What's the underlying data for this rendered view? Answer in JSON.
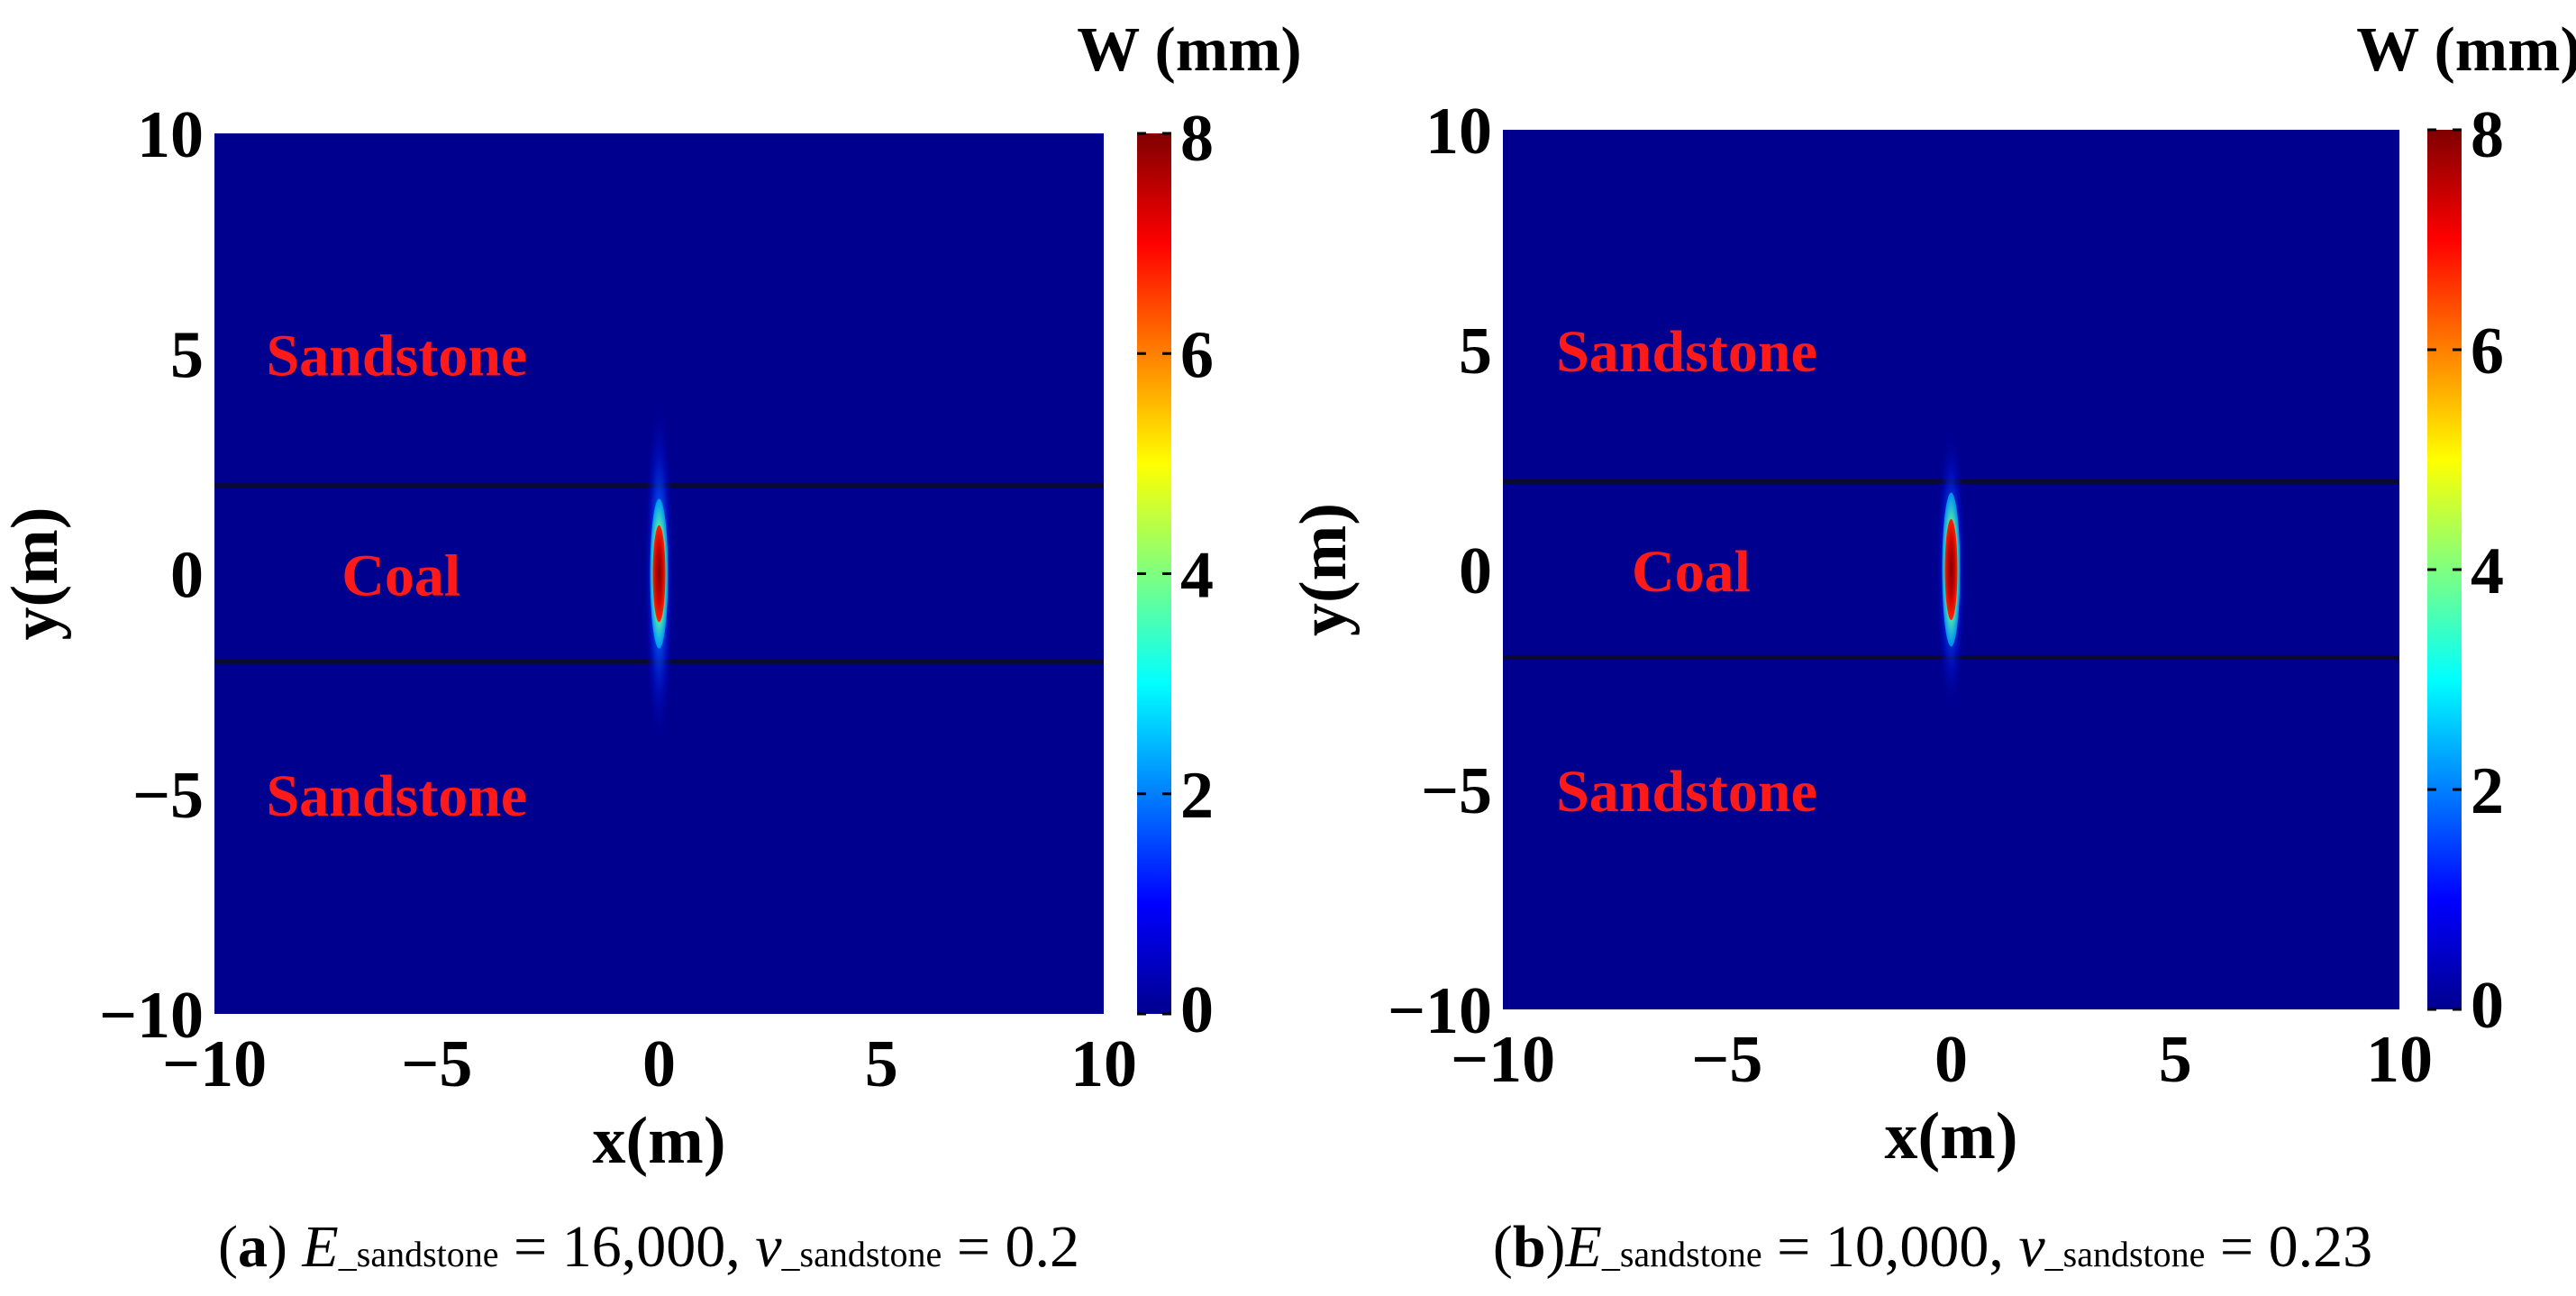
{
  "chart_data": [
    {
      "type": "heatmap",
      "panel_label": "(a)",
      "caption": {
        "label": "a",
        "e_symbol": "E",
        "e_subscript": "_sandstone",
        "e_value": "16,000",
        "v_symbol": "v",
        "v_subscript": "_sandstone",
        "v_value": "0.2"
      },
      "xlabel": "x(m)",
      "ylabel": "y(m)",
      "xlim": [
        -10,
        10
      ],
      "ylim": [
        -10,
        10
      ],
      "xticks": [
        -10,
        -5,
        0,
        5,
        10
      ],
      "yticks": [
        -10,
        -5,
        0,
        5,
        10
      ],
      "xtick_labels": [
        "−10",
        "−5",
        "0",
        "5",
        "10"
      ],
      "ytick_labels": [
        "−10",
        "−5",
        "0",
        "5",
        "10"
      ],
      "colorbar": {
        "title": "W (mm)",
        "range": [
          0,
          8
        ],
        "ticks": [
          0,
          2,
          4,
          6,
          8
        ],
        "tick_labels": [
          "0",
          "2",
          "4",
          "6",
          "8"
        ],
        "colormap": "jet"
      },
      "background_value": 0,
      "layers": [
        {
          "name": "Sandstone",
          "y_range": [
            2,
            10
          ],
          "label_y": 5
        },
        {
          "name": "Coal",
          "y_range": [
            -2,
            2
          ],
          "label_y": 0
        },
        {
          "name": "Sandstone",
          "y_range": [
            -10,
            -2
          ],
          "label_y": -5
        }
      ],
      "interfaces_y": [
        2,
        -2
      ],
      "crack_peak": {
        "x": 0,
        "y": 0,
        "value": 8,
        "half_length_y": 1.1,
        "halo_half_length_y": 4
      }
    },
    {
      "type": "heatmap",
      "panel_label": "(b)",
      "caption": {
        "label": "b",
        "e_symbol": "E",
        "e_subscript": "_sandstone",
        "e_value": "10,000",
        "v_symbol": "v",
        "v_subscript": "_sandstone",
        "v_value": "0.23"
      },
      "xlabel": "x(m)",
      "ylabel": "y(m)",
      "xlim": [
        -10,
        10
      ],
      "ylim": [
        -10,
        10
      ],
      "xticks": [
        -10,
        -5,
        0,
        5,
        10
      ],
      "yticks": [
        -10,
        -5,
        0,
        5,
        10
      ],
      "xtick_labels": [
        "−10",
        "−5",
        "0",
        "5",
        "10"
      ],
      "ytick_labels": [
        "−10",
        "−5",
        "0",
        "5",
        "10"
      ],
      "colorbar": {
        "title": "W (mm)",
        "range": [
          0,
          8
        ],
        "ticks": [
          0,
          2,
          4,
          6,
          8
        ],
        "tick_labels": [
          "0",
          "2",
          "4",
          "6",
          "8"
        ],
        "colormap": "jet"
      },
      "background_value": 0,
      "layers": [
        {
          "name": "Sandstone",
          "y_range": [
            2,
            10
          ],
          "label_y": 5
        },
        {
          "name": "Coal",
          "y_range": [
            -2,
            2
          ],
          "label_y": 0
        },
        {
          "name": "Sandstone",
          "y_range": [
            -10,
            -2
          ],
          "label_y": -5
        }
      ],
      "interfaces_y": [
        2,
        -2
      ],
      "crack_peak": {
        "x": 0,
        "y": 0,
        "value": 8,
        "half_length_y": 1.15,
        "halo_half_length_y": 3.3
      }
    }
  ],
  "colors": {
    "background_field": "#00008f",
    "interface_line": "#0a0a2e",
    "region_label": "#ff1a1a",
    "text": "#000000"
  }
}
